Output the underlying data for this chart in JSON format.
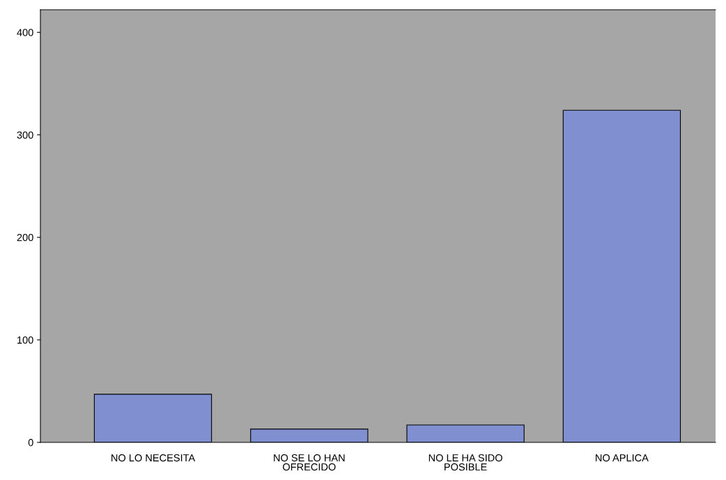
{
  "chart_data": {
    "type": "bar",
    "categories": [
      "NO LO NECESITA",
      "NO SE LO HAN\nOFRECIDO",
      "NO LE HA SIDO\nPOSIBLE",
      "NO APLICA"
    ],
    "values": [
      47,
      13,
      17,
      324
    ],
    "color": "#7f8fd0",
    "ylim": [
      0,
      422
    ],
    "yticks": [
      0,
      100,
      200,
      300,
      400
    ],
    "grid": false,
    "legend": false
  }
}
